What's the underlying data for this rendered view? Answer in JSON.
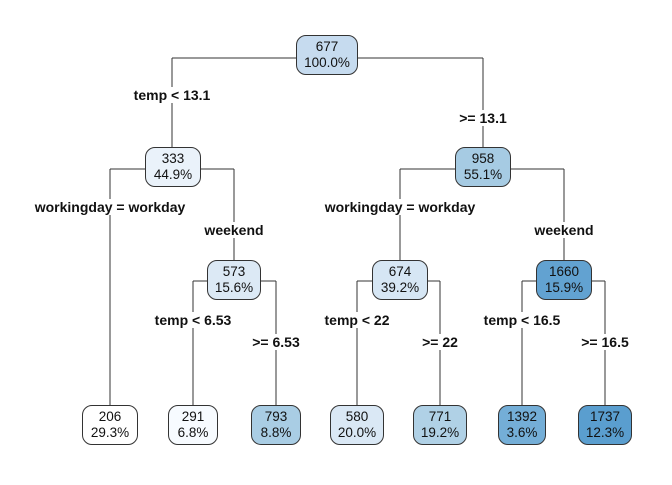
{
  "nodes": [
    {
      "id": "n1",
      "value": "677",
      "percent": "100.0%",
      "fill": "#c6dbef"
    },
    {
      "id": "n2",
      "value": "333",
      "percent": "44.9%",
      "fill": "#eaf2fa"
    },
    {
      "id": "n3",
      "value": "958",
      "percent": "55.1%",
      "fill": "#a6cbe3"
    },
    {
      "id": "n4",
      "value": "206",
      "percent": "29.3%",
      "fill": "#ffffff"
    },
    {
      "id": "n5",
      "value": "573",
      "percent": "15.6%",
      "fill": "#dce9f5"
    },
    {
      "id": "n6",
      "value": "674",
      "percent": "39.2%",
      "fill": "#d6e6f4"
    },
    {
      "id": "n7",
      "value": "1660",
      "percent": "15.9%",
      "fill": "#62a2d1"
    },
    {
      "id": "n8",
      "value": "291",
      "percent": "6.8%",
      "fill": "#f7fbff"
    },
    {
      "id": "n9",
      "value": "793",
      "percent": "8.8%",
      "fill": "#a9cde4"
    },
    {
      "id": "n10",
      "value": "580",
      "percent": "20.0%",
      "fill": "#dae8f5"
    },
    {
      "id": "n11",
      "value": "771",
      "percent": "19.2%",
      "fill": "#b0d1e6"
    },
    {
      "id": "n12",
      "value": "1392",
      "percent": "3.6%",
      "fill": "#74aed7"
    },
    {
      "id": "n13",
      "value": "1737",
      "percent": "12.3%",
      "fill": "#5a9ecf"
    }
  ],
  "splits": [
    {
      "id": "s1",
      "label": "temp < 13.1"
    },
    {
      "id": "s2",
      "label": ">= 13.1"
    },
    {
      "id": "s3",
      "label": "workingday = workday"
    },
    {
      "id": "s4",
      "label": "weekend"
    },
    {
      "id": "s5",
      "label": "workingday = workday"
    },
    {
      "id": "s6",
      "label": "weekend"
    },
    {
      "id": "s7",
      "label": "temp < 6.53"
    },
    {
      "id": "s8",
      "label": ">= 6.53"
    },
    {
      "id": "s9",
      "label": "temp < 22"
    },
    {
      "id": "s10",
      "label": ">= 22"
    },
    {
      "id": "s11",
      "label": "temp < 16.5"
    },
    {
      "id": "s12",
      "label": ">= 16.5"
    }
  ]
}
